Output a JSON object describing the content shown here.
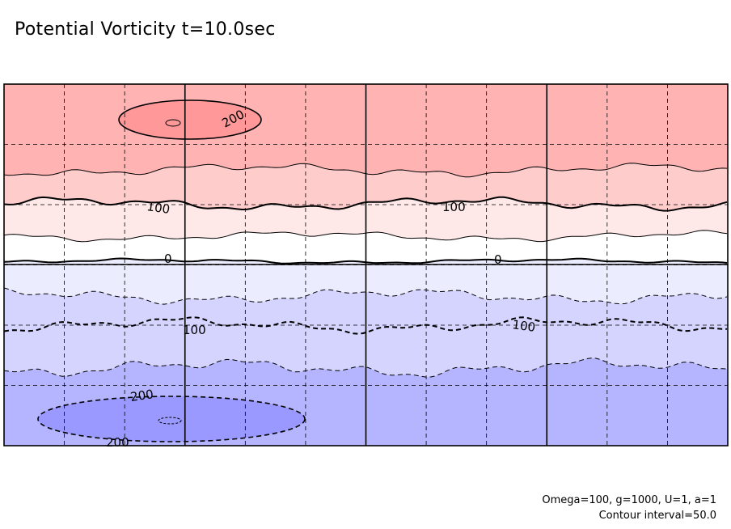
{
  "chart_data": {
    "type": "heatmap",
    "title": "Potential Vorticity t=10.0sec",
    "xlabel": "",
    "ylabel": "",
    "contour_interval": 50.0,
    "parameters_text": "Omega=100, g=1000, U=1, a=1",
    "contour_interval_text": "Contour interval=50.0",
    "grid": true,
    "contour_labels": [
      "200",
      "100",
      "100",
      "0",
      "0",
      "100",
      "100",
      "200",
      "200"
    ],
    "bands": [
      {
        "level_min": 200,
        "level_max": 250,
        "color": "#ffb3b3"
      },
      {
        "level_min": 100,
        "level_max": 200,
        "color": "#ffcccc"
      },
      {
        "level_min": 50,
        "level_max": 100,
        "color": "#ffe8e8"
      },
      {
        "level_min": 0,
        "level_max": 50,
        "color": "#ffffff"
      },
      {
        "level_min": -50,
        "level_max": 0,
        "color": "#ffffff"
      },
      {
        "level_min": -100,
        "level_max": -50,
        "color": "#ececff"
      },
      {
        "level_min": -150,
        "level_max": -100,
        "color": "#d4d4ff"
      },
      {
        "level_min": -200,
        "level_max": -150,
        "color": "#b4b4ff"
      },
      {
        "level_min": -250,
        "level_max": -200,
        "color": "#9a9aff"
      }
    ],
    "extremes": [
      {
        "sign": "positive",
        "color": "#ff9999"
      },
      {
        "sign": "negative",
        "color": "#9999ff"
      }
    ]
  }
}
